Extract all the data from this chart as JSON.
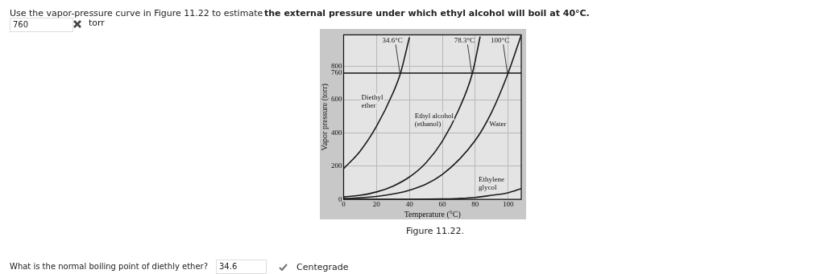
{
  "chart_data": {
    "type": "line",
    "xlabel": "Temperature (°C)",
    "ylabel": "Vapor pressure (torr)",
    "xlim": [
      0,
      108
    ],
    "ylim": [
      0,
      990
    ],
    "xticks": [
      0,
      20,
      40,
      60,
      80,
      100
    ],
    "yticks": [
      0,
      200,
      400,
      600,
      760,
      800
    ],
    "grid": true,
    "legend": false,
    "marker": "none",
    "line_style": "solid",
    "ref_lines": [
      {
        "axis": "y",
        "value": 760,
        "color": "#1a1a1a"
      }
    ],
    "series": [
      {
        "name": "Diethyl ether",
        "color": "#1a1a1a",
        "x": [
          0,
          10,
          20,
          30,
          34.6,
          40
        ],
        "values": [
          185,
          290,
          440,
          640,
          760,
          975
        ]
      },
      {
        "name": "Ethyl alcohol (ethanol)",
        "color": "#1a1a1a",
        "x": [
          0,
          10,
          20,
          30,
          40,
          50,
          60,
          70,
          78.3,
          83
        ],
        "values": [
          15,
          25,
          45,
          80,
          135,
          220,
          350,
          540,
          760,
          980
        ]
      },
      {
        "name": "Water",
        "color": "#1a1a1a",
        "x": [
          0,
          20,
          40,
          60,
          80,
          90,
          100,
          108
        ],
        "values": [
          5,
          18,
          55,
          150,
          355,
          525,
          760,
          990
        ]
      },
      {
        "name": "Ethylene glycol",
        "color": "#1a1a1a",
        "x": [
          0,
          60,
          70,
          80,
          90,
          100,
          108
        ],
        "values": [
          0,
          3,
          6,
          12,
          25,
          40,
          65
        ]
      }
    ],
    "annotations": [
      {
        "text": "34.6°C",
        "x": 34.6,
        "y": 760
      },
      {
        "text": "78.3°C",
        "x": 78.3,
        "y": 760
      },
      {
        "text": "100°C",
        "x": 100,
        "y": 760
      },
      "Use the vapor-pressure curve in Figure 11.22 to estimate",
      "the external pressure under which ethyl alcohol will boil at 40°C.",
      "760",
      "torr",
      "Figure 11.22.",
      "What is the normal boiling point of diethly ether?",
      "34.6",
      "Centegrade"
    ]
  }
}
